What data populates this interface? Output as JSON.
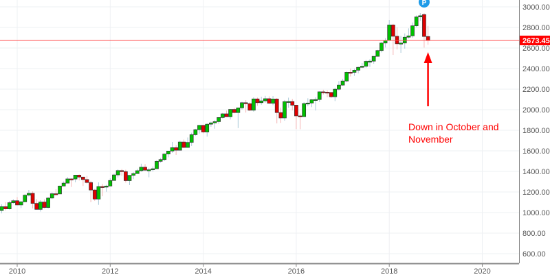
{
  "chart_data": {
    "type": "candlestick",
    "title": "",
    "xlabel": "",
    "ylabel": "",
    "grid": true,
    "x_ticks": [
      "2010",
      "2012",
      "2014",
      "2016",
      "2018",
      "2020"
    ],
    "y_ticks": [
      "600.00",
      "800.00",
      "1000.00",
      "1200.00",
      "1400.00",
      "1600.00",
      "1800.00",
      "2000.00",
      "2200.00",
      "2400.00",
      "2600.00",
      "2800.00",
      "3000.00"
    ],
    "ylim": [
      560,
      3060
    ],
    "xlim": [
      "2009-08",
      "2020-10"
    ],
    "interval": "monthly",
    "start_month": "2009-09",
    "current_price": "2673.45",
    "colors": {
      "up": "#00c000",
      "down": "#e00000",
      "up_wick": "#a9c8d8",
      "down_wick": "#f4b4b4",
      "price_line": "#ff4d4d",
      "price_label_bg": "#ff0000",
      "marker": "#1e9be8",
      "annotation": "#ff0000"
    },
    "marker": {
      "label": "P",
      "month": "2018-10"
    },
    "annotation": {
      "lines": [
        "Down in October and",
        "November"
      ],
      "arrow_month": "2018-11"
    },
    "ohlc": [
      [
        1020,
        1080,
        992,
        1057
      ],
      [
        1057,
        1101,
        1020,
        1036
      ],
      [
        1036,
        1113,
        1029,
        1096
      ],
      [
        1096,
        1130,
        1085,
        1115
      ],
      [
        1115,
        1150,
        1071,
        1074
      ],
      [
        1074,
        1112,
        1044,
        1104
      ],
      [
        1104,
        1180,
        1101,
        1169
      ],
      [
        1169,
        1220,
        1157,
        1187
      ],
      [
        1187,
        1206,
        1040,
        1089
      ],
      [
        1089,
        1131,
        1028,
        1031
      ],
      [
        1031,
        1120,
        1010,
        1102
      ],
      [
        1102,
        1129,
        1040,
        1049
      ],
      [
        1049,
        1148,
        1040,
        1141
      ],
      [
        1141,
        1196,
        1131,
        1183
      ],
      [
        1183,
        1227,
        1173,
        1181
      ],
      [
        1181,
        1262,
        1181,
        1258
      ],
      [
        1258,
        1303,
        1257,
        1286
      ],
      [
        1286,
        1345,
        1283,
        1327
      ],
      [
        1327,
        1333,
        1249,
        1326
      ],
      [
        1326,
        1366,
        1295,
        1364
      ],
      [
        1364,
        1371,
        1312,
        1345
      ],
      [
        1345,
        1346,
        1258,
        1321
      ],
      [
        1321,
        1357,
        1282,
        1292
      ],
      [
        1292,
        1308,
        1101,
        1219
      ],
      [
        1219,
        1230,
        1114,
        1131
      ],
      [
        1131,
        1293,
        1075,
        1253
      ],
      [
        1253,
        1278,
        1159,
        1247
      ],
      [
        1247,
        1270,
        1202,
        1258
      ],
      [
        1258,
        1333,
        1258,
        1312
      ],
      [
        1312,
        1378,
        1312,
        1366
      ],
      [
        1366,
        1420,
        1341,
        1408
      ],
      [
        1408,
        1423,
        1358,
        1398
      ],
      [
        1398,
        1416,
        1292,
        1310
      ],
      [
        1310,
        1364,
        1267,
        1362
      ],
      [
        1362,
        1392,
        1325,
        1379
      ],
      [
        1379,
        1426,
        1379,
        1407
      ],
      [
        1407,
        1475,
        1396,
        1441
      ],
      [
        1441,
        1471,
        1403,
        1412
      ],
      [
        1412,
        1435,
        1343,
        1416
      ],
      [
        1416,
        1448,
        1398,
        1426
      ],
      [
        1426,
        1509,
        1426,
        1498
      ],
      [
        1498,
        1531,
        1485,
        1515
      ],
      [
        1515,
        1574,
        1501,
        1569
      ],
      [
        1569,
        1598,
        1537,
        1598
      ],
      [
        1598,
        1687,
        1581,
        1631
      ],
      [
        1631,
        1655,
        1560,
        1606
      ],
      [
        1606,
        1698,
        1605,
        1686
      ],
      [
        1686,
        1710,
        1627,
        1633
      ],
      [
        1633,
        1730,
        1633,
        1682
      ],
      [
        1682,
        1776,
        1647,
        1757
      ],
      [
        1757,
        1814,
        1747,
        1806
      ],
      [
        1806,
        1849,
        1768,
        1848
      ],
      [
        1848,
        1851,
        1770,
        1783
      ],
      [
        1783,
        1867,
        1738,
        1859
      ],
      [
        1859,
        1884,
        1834,
        1872
      ],
      [
        1872,
        1898,
        1815,
        1884
      ],
      [
        1884,
        1924,
        1863,
        1924
      ],
      [
        1924,
        1968,
        1915,
        1960
      ],
      [
        1960,
        1992,
        1931,
        1931
      ],
      [
        1931,
        2005,
        1905,
        2003
      ],
      [
        2003,
        2019,
        1965,
        1972
      ],
      [
        1972,
        2019,
        1821,
        2018
      ],
      [
        2018,
        2076,
        2001,
        2068
      ],
      [
        2068,
        2093,
        1972,
        2059
      ],
      [
        2059,
        2072,
        1988,
        1995
      ],
      [
        1995,
        2120,
        1981,
        2105
      ],
      [
        2105,
        2117,
        2039,
        2068
      ],
      [
        2068,
        2126,
        2048,
        2086
      ],
      [
        2086,
        2135,
        2067,
        2107
      ],
      [
        2107,
        2130,
        2057,
        2063
      ],
      [
        2063,
        2133,
        2044,
        2104
      ],
      [
        2104,
        2113,
        1867,
        1972
      ],
      [
        1972,
        2021,
        1872,
        1920
      ],
      [
        1920,
        2094,
        1893,
        2079
      ],
      [
        2079,
        2117,
        2019,
        2080
      ],
      [
        2080,
        2104,
        1993,
        2044
      ],
      [
        2044,
        2045,
        1812,
        1940
      ],
      [
        1940,
        1962,
        1810,
        1932
      ],
      [
        1932,
        2073,
        1931,
        2060
      ],
      [
        2060,
        2111,
        2034,
        2065
      ],
      [
        2065,
        2103,
        2025,
        2097
      ],
      [
        2097,
        2120,
        1992,
        2099
      ],
      [
        2099,
        2178,
        2075,
        2174
      ],
      [
        2174,
        2194,
        2148,
        2171
      ],
      [
        2171,
        2188,
        2120,
        2168
      ],
      [
        2168,
        2169,
        2114,
        2126
      ],
      [
        2126,
        2214,
        2084,
        2199
      ],
      [
        2199,
        2278,
        2187,
        2239
      ],
      [
        2239,
        2301,
        2233,
        2279
      ],
      [
        2279,
        2372,
        2267,
        2364
      ],
      [
        2364,
        2401,
        2323,
        2363
      ],
      [
        2363,
        2398,
        2329,
        2384
      ],
      [
        2384,
        2419,
        2353,
        2412
      ],
      [
        2412,
        2454,
        2405,
        2423
      ],
      [
        2423,
        2484,
        2407,
        2470
      ],
      [
        2470,
        2491,
        2417,
        2472
      ],
      [
        2472,
        2519,
        2447,
        2519
      ],
      [
        2519,
        2582,
        2519,
        2575
      ],
      [
        2575,
        2657,
        2557,
        2648
      ],
      [
        2648,
        2695,
        2605,
        2674
      ],
      [
        2674,
        2873,
        2674,
        2824
      ],
      [
        2824,
        2835,
        2533,
        2714
      ],
      [
        2714,
        2801,
        2585,
        2641
      ],
      [
        2641,
        2718,
        2553,
        2648
      ],
      [
        2648,
        2742,
        2594,
        2705
      ],
      [
        2705,
        2791,
        2692,
        2718
      ],
      [
        2718,
        2848,
        2699,
        2816
      ],
      [
        2816,
        2917,
        2802,
        2902
      ],
      [
        2902,
        2940,
        2864,
        2914
      ],
      [
        2925,
        2939,
        2604,
        2712
      ],
      [
        2712,
        2815,
        2631,
        2673.45
      ]
    ]
  }
}
